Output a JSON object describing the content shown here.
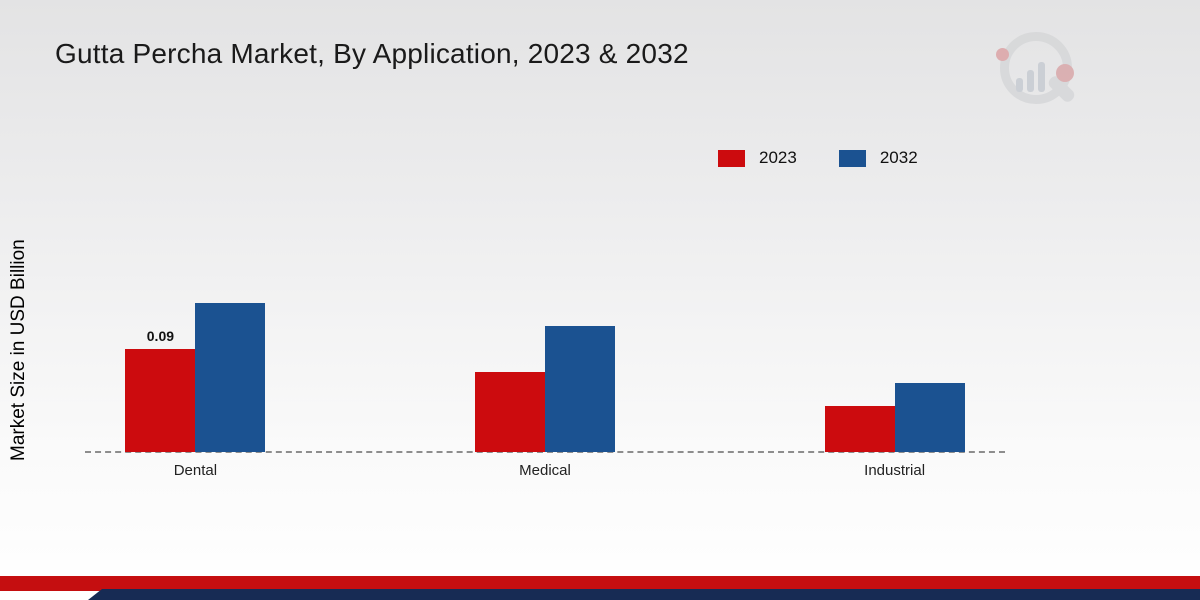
{
  "page": {
    "title": "Gutta Percha Market, By Application, 2023 & 2032"
  },
  "chart_data": {
    "type": "bar",
    "title": "Gutta Percha Market, By Application, 2023 & 2032",
    "xlabel": "",
    "ylabel": "Market Size in USD Billion",
    "categories": [
      "Dental",
      "Medical",
      "Industrial"
    ],
    "series": [
      {
        "name": "2023",
        "color": "#cc0b0e",
        "values": [
          0.09,
          0.07,
          0.04
        ],
        "labels": [
          "0.09",
          null,
          null
        ]
      },
      {
        "name": "2032",
        "color": "#1b5291",
        "values": [
          0.13,
          0.11,
          0.06
        ],
        "labels": [
          null,
          null,
          null
        ]
      }
    ],
    "ylim": [
      0,
      0.28
    ],
    "grid": false,
    "legend_position": "top-right",
    "baseline_style": "dashed"
  },
  "colors": {
    "accent_red": "#cc0b0e",
    "accent_blue": "#1b5291",
    "footer_red": "#c50e10",
    "footer_navy": "#172b54"
  }
}
